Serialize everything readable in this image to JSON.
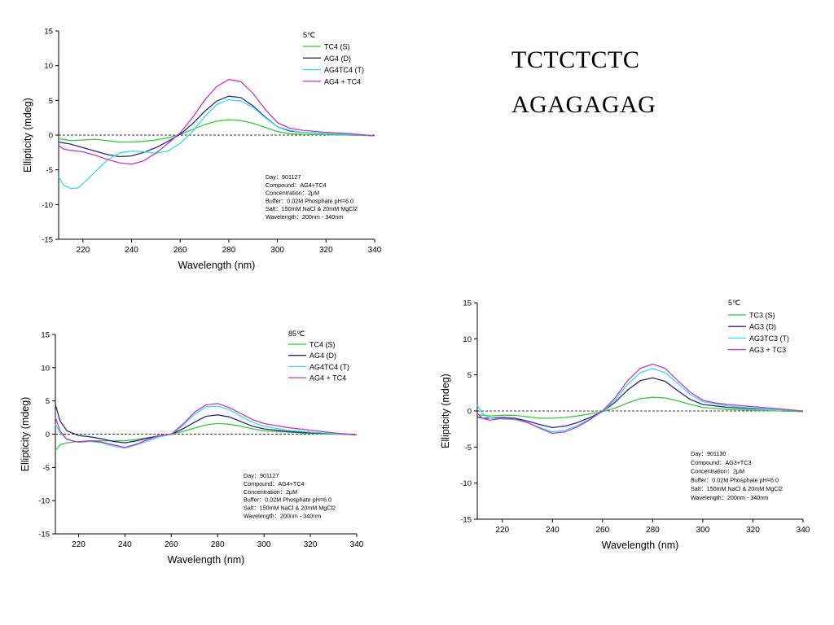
{
  "sequences": {
    "line1": "TCTCTCTC",
    "line2": "AGAGAGAG"
  },
  "colors": {
    "green": "#33cc33",
    "navy": "#2a2a80",
    "cyan": "#33ddee",
    "magenta": "#cc33cc"
  },
  "chart_data": [
    {
      "type": "line",
      "temperature": "5℃",
      "xlabel": "Wavelength (nm)",
      "ylabel": "Ellipticity (mdeg)",
      "xlim": [
        210,
        340
      ],
      "ylim": [
        -15,
        15
      ],
      "xticks": [
        "220",
        "240",
        "260",
        "280",
        "300",
        "320",
        "340"
      ],
      "yticks": [
        "-15",
        "-10",
        "-5",
        "0",
        "5",
        "10",
        "15"
      ],
      "legend": [
        "TC4 (S)",
        "AG4 (D)",
        "AG4TC4 (T)",
        "AG4 + TC4"
      ],
      "info": [
        "Day：901127",
        "Compound：AG4+TC4",
        "Concentration：2μM",
        "Buffer：0.02M Phosphate pH=6.0",
        "Salt：150mM NaCl & 20mM MgCl2",
        "Wavelength：200nm - 340nm"
      ],
      "series": [
        {
          "name": "TC4 (S)",
          "color": "#33cc33",
          "x": [
            210,
            215,
            220,
            225,
            230,
            235,
            240,
            245,
            250,
            255,
            260,
            265,
            270,
            275,
            280,
            285,
            290,
            295,
            300,
            305,
            310,
            320,
            330,
            340
          ],
          "y": [
            -0.5,
            -0.8,
            -0.7,
            -0.6,
            -0.8,
            -1.0,
            -1.0,
            -0.9,
            -0.7,
            -0.4,
            0.1,
            0.8,
            1.5,
            2.0,
            2.2,
            2.1,
            1.7,
            1.1,
            0.5,
            0.2,
            0.1,
            0.05,
            0,
            -0.1
          ]
        },
        {
          "name": "AG4 (D)",
          "color": "#2a2a80",
          "x": [
            210,
            215,
            220,
            225,
            230,
            235,
            240,
            245,
            250,
            255,
            260,
            265,
            270,
            275,
            280,
            285,
            290,
            295,
            300,
            305,
            310,
            320,
            330,
            340
          ],
          "y": [
            -1.0,
            -1.3,
            -1.8,
            -2.3,
            -2.8,
            -3.1,
            -3.0,
            -2.5,
            -1.8,
            -0.9,
            0.1,
            1.6,
            3.4,
            4.9,
            5.6,
            5.4,
            4.2,
            2.6,
            1.2,
            0.6,
            0.4,
            0.2,
            0.1,
            -0.1
          ]
        },
        {
          "name": "AG4TC4 (T)",
          "color": "#33ddee",
          "x": [
            210,
            212,
            215,
            218,
            220,
            225,
            230,
            235,
            240,
            245,
            250,
            255,
            260,
            265,
            270,
            275,
            280,
            285,
            290,
            295,
            300,
            305,
            310,
            320,
            330,
            340
          ],
          "y": [
            -6.0,
            -7.2,
            -7.7,
            -7.6,
            -7.0,
            -5.3,
            -3.6,
            -2.6,
            -2.3,
            -2.4,
            -2.6,
            -2.3,
            -1.2,
            0.5,
            2.6,
            4.4,
            5.1,
            4.9,
            4.0,
            2.5,
            1.2,
            0.7,
            0.4,
            0.2,
            0.1,
            -0.1
          ]
        },
        {
          "name": "AG4 + TC4",
          "color": "#cc33cc",
          "x": [
            210,
            212,
            215,
            220,
            225,
            230,
            235,
            240,
            245,
            250,
            255,
            260,
            265,
            270,
            275,
            280,
            285,
            290,
            295,
            300,
            305,
            310,
            320,
            330,
            340
          ],
          "y": [
            -1.5,
            -2.0,
            -2.2,
            -2.4,
            -2.9,
            -3.5,
            -4.0,
            -4.2,
            -3.7,
            -2.6,
            -1.2,
            0.3,
            2.5,
            5.0,
            7.0,
            8.0,
            7.7,
            6.0,
            3.7,
            1.8,
            1.0,
            0.7,
            0.4,
            0.2,
            -0.1
          ]
        }
      ]
    },
    {
      "type": "line",
      "temperature": "85℃",
      "xlabel": "Wavelength (nm)",
      "ylabel": "Ellipticity (mdeg)",
      "xlim": [
        210,
        340
      ],
      "ylim": [
        -15,
        15
      ],
      "xticks": [
        "220",
        "240",
        "260",
        "280",
        "300",
        "320",
        "340"
      ],
      "yticks": [
        "-15",
        "-10",
        "-5",
        "0",
        "5",
        "10",
        "15"
      ],
      "legend": [
        "TC4 (S)",
        "AG4 (D)",
        "AG4TC4 (T)",
        "AG4 + TC4"
      ],
      "info": [
        "Day：901127",
        "Compound：AG4+TC4",
        "Concentration：2μM",
        "Buffer：0.02M Phosphate pH=6.0",
        "Salt：150mM NaCl & 20mM MgCl2",
        "Wavelength：200nm - 340nm"
      ],
      "series": [
        {
          "name": "TC4 (S)",
          "color": "#33cc33",
          "x": [
            210,
            212,
            215,
            220,
            225,
            230,
            235,
            240,
            245,
            250,
            255,
            260,
            265,
            270,
            275,
            280,
            285,
            290,
            295,
            300,
            310,
            320,
            330,
            340
          ],
          "y": [
            -2.5,
            -1.6,
            -1.3,
            -1.1,
            -1.0,
            -1.0,
            -1.0,
            -1.0,
            -0.8,
            -0.5,
            -0.3,
            0.0,
            0.4,
            0.9,
            1.4,
            1.6,
            1.5,
            1.2,
            0.8,
            0.5,
            0.3,
            0.1,
            0,
            -0.1
          ]
        },
        {
          "name": "AG4 (D)",
          "color": "#2a2a80",
          "x": [
            210,
            212,
            215,
            220,
            225,
            230,
            235,
            240,
            245,
            250,
            255,
            260,
            265,
            270,
            275,
            280,
            285,
            290,
            295,
            300,
            310,
            320,
            330,
            340
          ],
          "y": [
            4.5,
            2.0,
            0.5,
            -0.2,
            -0.4,
            -0.7,
            -1.1,
            -1.3,
            -1.0,
            -0.6,
            -0.2,
            0.0,
            0.8,
            1.8,
            2.7,
            2.9,
            2.6,
            1.9,
            1.2,
            0.8,
            0.4,
            0.2,
            0.1,
            -0.1
          ]
        },
        {
          "name": "AG4TC4 (T)",
          "color": "#33ddee",
          "x": [
            210,
            212,
            215,
            220,
            225,
            230,
            235,
            240,
            245,
            250,
            255,
            260,
            265,
            270,
            275,
            280,
            285,
            290,
            295,
            300,
            310,
            320,
            330,
            340
          ],
          "y": [
            1.5,
            0.2,
            -0.8,
            -1.2,
            -1.1,
            -1.3,
            -1.8,
            -2.1,
            -1.6,
            -1.0,
            -0.4,
            0.0,
            1.3,
            3.0,
            4.1,
            4.2,
            3.7,
            2.7,
            1.8,
            1.2,
            0.6,
            0.3,
            0.1,
            -0.1
          ]
        },
        {
          "name": "AG4 + TC4",
          "color": "#cc33cc",
          "x": [
            210,
            212,
            215,
            220,
            225,
            230,
            235,
            240,
            245,
            250,
            255,
            260,
            265,
            270,
            275,
            280,
            285,
            290,
            295,
            300,
            310,
            320,
            330,
            340
          ],
          "y": [
            2.5,
            0.5,
            -0.8,
            -1.2,
            -1.0,
            -1.2,
            -1.6,
            -2.0,
            -1.5,
            -0.8,
            -0.2,
            0.0,
            1.5,
            3.3,
            4.4,
            4.6,
            4.0,
            3.1,
            2.2,
            1.6,
            1.0,
            0.6,
            0.2,
            -0.1
          ]
        }
      ]
    },
    {
      "type": "line",
      "temperature": "5℃",
      "xlabel": "Wavelength (nm)",
      "ylabel": "Ellipticity (mdeg)",
      "xlim": [
        210,
        340
      ],
      "ylim": [
        -15,
        15
      ],
      "xticks": [
        "220",
        "240",
        "260",
        "280",
        "300",
        "320",
        "340"
      ],
      "yticks": [
        "-15",
        "-10",
        "-5",
        "0",
        "5",
        "10",
        "15"
      ],
      "legend": [
        "TC3 (S)",
        "AG3 (D)",
        "AG3TC3 (T)",
        "AG3 + TC3"
      ],
      "info": [
        "Day：901130",
        "Compound：AG3+TC3",
        "Concentration：2μM",
        "Buffer：0.02M Phosphate pH=6.0",
        "Salt：150mM NaCl & 20mM MgCl2",
        "Wavelength：200nm - 340nm"
      ],
      "series": [
        {
          "name": "TC3 (S)",
          "color": "#33cc33",
          "x": [
            210,
            215,
            220,
            225,
            230,
            235,
            240,
            245,
            250,
            255,
            260,
            265,
            270,
            275,
            280,
            285,
            290,
            295,
            300,
            310,
            320,
            330,
            340
          ],
          "y": [
            -0.5,
            -0.7,
            -0.6,
            -0.6,
            -0.8,
            -1.0,
            -1.0,
            -0.9,
            -0.7,
            -0.4,
            -0.1,
            0.4,
            1.1,
            1.7,
            1.9,
            1.8,
            1.4,
            0.9,
            0.5,
            0.2,
            0.1,
            0,
            -0.1
          ]
        },
        {
          "name": "AG3 (D)",
          "color": "#2a2a80",
          "x": [
            210,
            212,
            215,
            220,
            225,
            230,
            235,
            240,
            245,
            250,
            255,
            260,
            265,
            270,
            275,
            280,
            285,
            290,
            295,
            300,
            310,
            320,
            330,
            340
          ],
          "y": [
            -0.8,
            -1.0,
            -1.0,
            -0.9,
            -1.0,
            -1.4,
            -1.9,
            -2.3,
            -2.1,
            -1.6,
            -0.9,
            -0.1,
            1.2,
            2.9,
            4.2,
            4.6,
            4.1,
            2.8,
            1.6,
            0.9,
            0.5,
            0.3,
            0.2,
            0
          ]
        },
        {
          "name": "AG3TC3 (T)",
          "color": "#33ddee",
          "x": [
            210,
            212,
            215,
            220,
            225,
            230,
            235,
            240,
            245,
            250,
            255,
            260,
            265,
            270,
            275,
            280,
            285,
            290,
            295,
            300,
            310,
            320,
            330,
            340
          ],
          "y": [
            0.8,
            -0.3,
            -1.0,
            -1.1,
            -1.2,
            -1.6,
            -2.3,
            -2.9,
            -2.7,
            -2.0,
            -1.1,
            -0.1,
            1.5,
            3.7,
            5.3,
            5.9,
            5.3,
            3.8,
            2.3,
            1.3,
            0.7,
            0.4,
            0.2,
            0
          ]
        },
        {
          "name": "AG3 + TC3",
          "color": "#cc33cc",
          "x": [
            210,
            212,
            215,
            220,
            225,
            230,
            235,
            240,
            245,
            250,
            255,
            260,
            265,
            270,
            275,
            280,
            285,
            290,
            295,
            300,
            305,
            310,
            320,
            330,
            340
          ],
          "y": [
            -0.3,
            -1.0,
            -1.3,
            -1.0,
            -1.1,
            -1.6,
            -2.4,
            -3.1,
            -2.9,
            -2.2,
            -1.2,
            0.0,
            1.8,
            4.2,
            5.9,
            6.5,
            5.9,
            4.2,
            2.6,
            1.5,
            1.1,
            0.9,
            0.6,
            0.3,
            0
          ]
        }
      ]
    }
  ]
}
